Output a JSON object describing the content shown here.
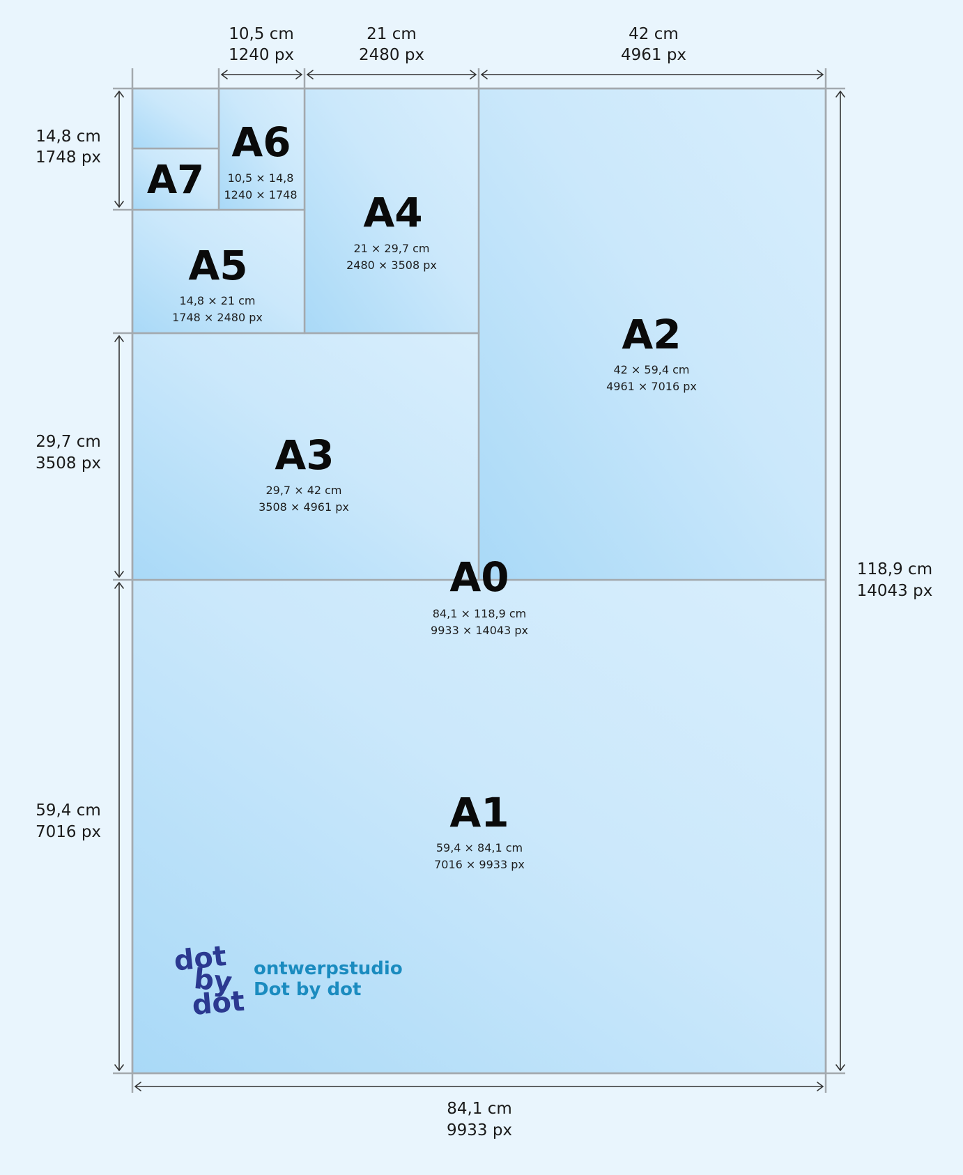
{
  "sheets": [
    {
      "id": "a0",
      "name": "A0",
      "cm": "84,1 × 118,9 cm",
      "px": "9933 × 14043 px"
    },
    {
      "id": "a1",
      "name": "A1",
      "cm": "59,4 × 84,1 cm",
      "px": "7016 × 9933 px"
    },
    {
      "id": "a2",
      "name": "A2",
      "cm": "42 × 59,4 cm",
      "px": "4961 × 7016 px"
    },
    {
      "id": "a3",
      "name": "A3",
      "cm": "29,7 × 42 cm",
      "px": "3508 × 4961 px"
    },
    {
      "id": "a4",
      "name": "A4",
      "cm": "21 × 29,7 cm",
      "px": "2480 × 3508 px"
    },
    {
      "id": "a5",
      "name": "A5",
      "cm": "14,8 × 21 cm",
      "px": "1748 × 2480 px"
    },
    {
      "id": "a6",
      "name": "A6",
      "cm": "10,5 × 14,8",
      "px": "1240 × 1748"
    },
    {
      "id": "a7",
      "name": "A7"
    }
  ],
  "dimensions": {
    "top": [
      {
        "id": "top-10-5",
        "cm": "10,5 cm",
        "px": "1240 px"
      },
      {
        "id": "top-21",
        "cm": "21 cm",
        "px": "2480 px"
      },
      {
        "id": "top-42",
        "cm": "42 cm",
        "px": "4961 px"
      }
    ],
    "left": [
      {
        "id": "left-14-8",
        "cm": "14,8 cm",
        "px": "1748 px"
      },
      {
        "id": "left-29-7",
        "cm": "29,7 cm",
        "px": "3508 px"
      },
      {
        "id": "left-59-4",
        "cm": "59,4 cm",
        "px": "7016 px"
      }
    ],
    "right": {
      "id": "right-118-9",
      "cm": "118,9 cm",
      "px": "14043 px"
    },
    "bottom": {
      "id": "bottom-84-1",
      "cm": "84,1 cm",
      "px": "9933 px"
    }
  },
  "logo": {
    "mark_lines": [
      "dot",
      "by",
      "dot"
    ],
    "line1": "ontwerpstudio",
    "line2": "Dot by dot",
    "colors": {
      "mark": "#2b3990",
      "text": "#1a8bbf"
    }
  },
  "colors": {
    "background": "#e9f5fd",
    "sheet_light": "#d4ecfb",
    "sheet_dark": "#a8d8f6",
    "border": "#a3a9ae",
    "arrow": "#333333"
  }
}
